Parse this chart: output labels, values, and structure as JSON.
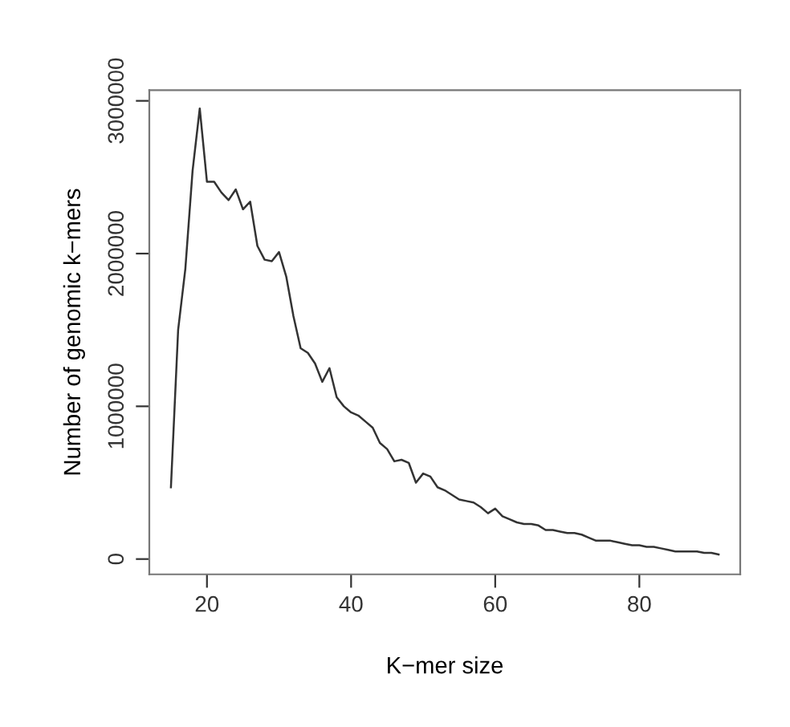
{
  "chart_data": {
    "type": "line",
    "xlabel": "K−mer size",
    "ylabel": "Number of genomic k−mers",
    "x": [
      15,
      16,
      17,
      18,
      19,
      20,
      21,
      22,
      23,
      24,
      25,
      26,
      27,
      28,
      29,
      30,
      31,
      32,
      33,
      34,
      35,
      36,
      37,
      38,
      39,
      40,
      41,
      42,
      43,
      44,
      45,
      46,
      47,
      48,
      49,
      50,
      51,
      52,
      53,
      54,
      55,
      56,
      57,
      58,
      59,
      60,
      61,
      62,
      63,
      64,
      65,
      66,
      67,
      68,
      69,
      70,
      71,
      72,
      73,
      74,
      75,
      76,
      77,
      78,
      79,
      80,
      81,
      82,
      83,
      84,
      85,
      86,
      87,
      88,
      89,
      90,
      91
    ],
    "series": [
      {
        "color": "#333333",
        "values": [
          470000,
          1500000,
          1900000,
          2540000,
          2950000,
          2470000,
          2470000,
          2400000,
          2350000,
          2420000,
          2290000,
          2340000,
          2050000,
          1960000,
          1950000,
          2010000,
          1850000,
          1590000,
          1380000,
          1350000,
          1280000,
          1160000,
          1250000,
          1060000,
          1000000,
          960000,
          940000,
          900000,
          860000,
          760000,
          720000,
          640000,
          650000,
          630000,
          500000,
          560000,
          540000,
          470000,
          450000,
          420000,
          390000,
          380000,
          370000,
          340000,
          300000,
          330000,
          280000,
          260000,
          240000,
          230000,
          230000,
          220000,
          190000,
          190000,
          180000,
          170000,
          170000,
          160000,
          140000,
          120000,
          120000,
          120000,
          110000,
          100000,
          90000,
          90000,
          80000,
          80000,
          70000,
          60000,
          50000,
          50000,
          50000,
          50000,
          40000,
          40000,
          30000
        ]
      }
    ],
    "xlim": [
      12,
      94
    ],
    "ylim": [
      -100000,
      3070000
    ],
    "xticks": [
      20,
      40,
      60,
      80
    ],
    "yticks": [
      0,
      1000000,
      2000000,
      3000000
    ],
    "grid": false,
    "marker": "none",
    "line_style": "solid"
  }
}
